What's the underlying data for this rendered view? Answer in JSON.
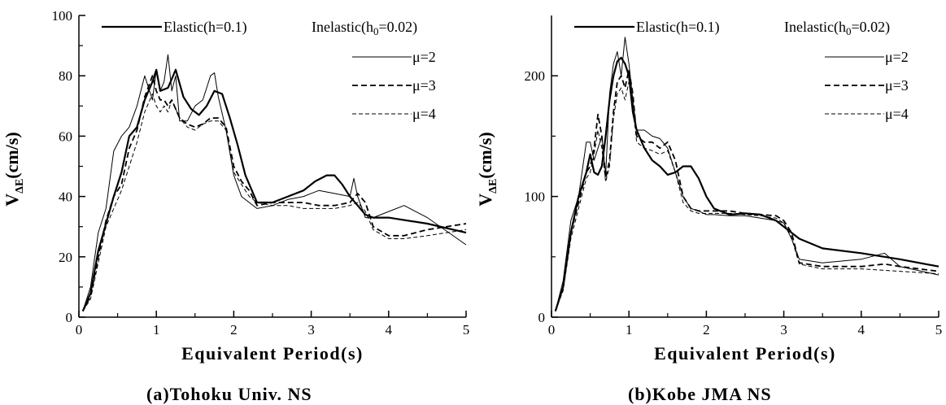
{
  "chart_data": [
    {
      "type": "line",
      "caption": "(a)Tohoku Univ. NS",
      "xlabel": "Equivalent Period(s)",
      "ylabel": {
        "main": "V",
        "sub": "ΔE",
        "rest": "(cm/s)"
      },
      "xlim": [
        0,
        5
      ],
      "ylim": [
        0,
        100
      ],
      "xticks": [
        "0",
        "1",
        "2",
        "3",
        "4",
        "5"
      ],
      "yticks": [
        "0",
        "20",
        "40",
        "60",
        "80",
        "100"
      ],
      "legend": {
        "elastic": "Elastic(h=0.1)",
        "inelastic": {
          "prefix": "Inelastic(h",
          "sub": "0",
          "suffix": "=0.02)"
        },
        "mu2": "μ=2",
        "mu3": "μ=3",
        "mu4": "μ=4"
      },
      "series": [
        {
          "name": "Elastic(h=0.1)",
          "style": "thick-solid",
          "x": [
            0.05,
            0.15,
            0.25,
            0.35,
            0.45,
            0.55,
            0.65,
            0.75,
            0.85,
            0.95,
            1.0,
            1.05,
            1.15,
            1.25,
            1.35,
            1.45,
            1.55,
            1.65,
            1.75,
            1.85,
            1.95,
            2.05,
            2.15,
            2.3,
            2.5,
            2.7,
            2.9,
            3.05,
            3.2,
            3.3,
            3.4,
            3.5,
            3.6,
            3.7,
            3.8,
            4.0,
            4.5,
            5.0
          ],
          "y": [
            2,
            8,
            22,
            31,
            40,
            48,
            60,
            63,
            72,
            78,
            82,
            75,
            76,
            82,
            73,
            69,
            67,
            70,
            75,
            74,
            66,
            57,
            47,
            38,
            38,
            40,
            42,
            45,
            47,
            47,
            44,
            40,
            37,
            34,
            33,
            33,
            31,
            28
          ]
        },
        {
          "name": "μ=2",
          "style": "thin-solid",
          "x": [
            0.05,
            0.15,
            0.25,
            0.35,
            0.45,
            0.55,
            0.65,
            0.75,
            0.85,
            0.95,
            1.0,
            1.05,
            1.1,
            1.15,
            1.2,
            1.25,
            1.3,
            1.4,
            1.5,
            1.6,
            1.7,
            1.75,
            1.8,
            1.9,
            2.0,
            2.1,
            2.2,
            2.3,
            2.5,
            2.7,
            2.9,
            3.1,
            3.3,
            3.5,
            3.55,
            3.6,
            3.7,
            3.8,
            4.0,
            4.2,
            4.5,
            5.0
          ],
          "y": [
            2,
            10,
            28,
            36,
            55,
            60,
            63,
            70,
            80,
            72,
            82,
            75,
            78,
            87,
            75,
            80,
            65,
            65,
            70,
            72,
            80,
            81,
            73,
            62,
            47,
            40,
            38,
            36,
            37,
            39,
            40,
            42,
            41,
            40,
            46,
            40,
            33,
            33,
            35,
            37,
            33,
            24
          ]
        },
        {
          "name": "μ=3",
          "style": "thick-dashed",
          "x": [
            0.05,
            0.15,
            0.25,
            0.35,
            0.45,
            0.55,
            0.65,
            0.75,
            0.85,
            0.95,
            1.0,
            1.05,
            1.1,
            1.15,
            1.2,
            1.3,
            1.4,
            1.5,
            1.6,
            1.7,
            1.8,
            1.9,
            2.0,
            2.1,
            2.2,
            2.3,
            2.5,
            2.7,
            2.9,
            3.1,
            3.3,
            3.5,
            3.6,
            3.7,
            3.8,
            4.0,
            4.2,
            4.5,
            5.0
          ],
          "y": [
            2,
            7,
            20,
            32,
            40,
            44,
            56,
            62,
            73,
            80,
            75,
            72,
            72,
            70,
            72,
            66,
            64,
            63,
            64,
            66,
            66,
            63,
            50,
            45,
            42,
            37,
            38,
            38,
            38,
            37,
            37,
            38,
            41,
            38,
            30,
            27,
            27,
            29,
            31
          ]
        },
        {
          "name": "μ=4",
          "style": "thin-dashed",
          "x": [
            0.05,
            0.15,
            0.25,
            0.35,
            0.45,
            0.55,
            0.65,
            0.75,
            0.85,
            0.95,
            1.0,
            1.05,
            1.1,
            1.15,
            1.2,
            1.3,
            1.4,
            1.5,
            1.6,
            1.7,
            1.8,
            1.9,
            2.0,
            2.1,
            2.2,
            2.3,
            2.5,
            2.7,
            2.9,
            3.1,
            3.3,
            3.5,
            3.6,
            3.7,
            3.8,
            4.0,
            4.2,
            4.5,
            5.0
          ],
          "y": [
            2,
            6,
            18,
            30,
            36,
            42,
            50,
            58,
            68,
            74,
            70,
            68,
            70,
            68,
            72,
            66,
            63,
            62,
            64,
            65,
            65,
            62,
            48,
            44,
            40,
            38,
            37,
            37,
            36,
            36,
            36,
            37,
            38,
            35,
            29,
            26,
            26,
            27,
            29
          ]
        }
      ]
    },
    {
      "type": "line",
      "caption": "(b)Kobe JMA NS",
      "xlabel": "Equivalent Period(s)",
      "ylabel": {
        "main": "V",
        "sub": "ΔE",
        "rest": "(cm/s)"
      },
      "xlim": [
        0,
        5
      ],
      "ylim": [
        0,
        250
      ],
      "yticks_values": [
        0,
        100,
        200
      ],
      "xticks": [
        "0",
        "1",
        "2",
        "3",
        "4",
        "5"
      ],
      "yticks": [
        "0",
        "100",
        "200"
      ],
      "legend": {
        "elastic": "Elastic(h=0.1)",
        "inelastic": {
          "prefix": "Inelastic(h",
          "sub": "0",
          "suffix": "=0.02)"
        },
        "mu2": "μ=2",
        "mu3": "μ=3",
        "mu4": "μ=4"
      },
      "series": [
        {
          "name": "Elastic(h=0.1)",
          "style": "thick-solid",
          "x": [
            0.05,
            0.15,
            0.25,
            0.35,
            0.45,
            0.5,
            0.55,
            0.6,
            0.65,
            0.7,
            0.75,
            0.8,
            0.85,
            0.9,
            0.95,
            1.0,
            1.05,
            1.1,
            1.2,
            1.3,
            1.4,
            1.5,
            1.6,
            1.7,
            1.8,
            1.9,
            2.0,
            2.1,
            2.3,
            2.5,
            2.7,
            2.9,
            3.0,
            3.2,
            3.5,
            4.0,
            4.5,
            5.0
          ],
          "y": [
            5,
            25,
            70,
            100,
            120,
            135,
            120,
            118,
            125,
            150,
            180,
            200,
            212,
            215,
            210,
            200,
            170,
            155,
            140,
            130,
            125,
            118,
            120,
            125,
            125,
            115,
            100,
            90,
            85,
            86,
            85,
            80,
            75,
            65,
            57,
            53,
            48,
            42
          ]
        },
        {
          "name": "μ=2",
          "style": "thin-solid",
          "x": [
            0.05,
            0.15,
            0.25,
            0.35,
            0.45,
            0.5,
            0.55,
            0.6,
            0.65,
            0.7,
            0.75,
            0.8,
            0.85,
            0.9,
            0.95,
            1.0,
            1.05,
            1.1,
            1.2,
            1.3,
            1.4,
            1.5,
            1.6,
            1.7,
            1.8,
            1.9,
            2.0,
            2.1,
            2.3,
            2.5,
            2.7,
            2.9,
            3.0,
            3.1,
            3.2,
            3.5,
            4.0,
            4.3,
            4.5,
            5.0
          ],
          "y": [
            5,
            30,
            80,
            100,
            145,
            145,
            130,
            140,
            150,
            118,
            185,
            210,
            220,
            200,
            232,
            210,
            180,
            155,
            155,
            150,
            148,
            140,
            120,
            100,
            90,
            88,
            85,
            85,
            84,
            84,
            82,
            80,
            78,
            65,
            48,
            45,
            48,
            53,
            42,
            35
          ]
        },
        {
          "name": "μ=3",
          "style": "thick-dashed",
          "x": [
            0.05,
            0.15,
            0.25,
            0.35,
            0.45,
            0.5,
            0.55,
            0.6,
            0.65,
            0.7,
            0.75,
            0.8,
            0.85,
            0.9,
            0.95,
            1.0,
            1.05,
            1.1,
            1.2,
            1.3,
            1.4,
            1.5,
            1.6,
            1.7,
            1.8,
            1.9,
            2.0,
            2.1,
            2.3,
            2.5,
            2.7,
            2.9,
            3.0,
            3.1,
            3.2,
            3.5,
            4.0,
            4.3,
            4.5,
            5.0
          ],
          "y": [
            5,
            25,
            70,
            95,
            120,
            125,
            140,
            168,
            150,
            115,
            130,
            170,
            195,
            200,
            190,
            205,
            185,
            150,
            145,
            145,
            140,
            145,
            130,
            100,
            90,
            88,
            88,
            88,
            88,
            86,
            85,
            84,
            80,
            70,
            45,
            42,
            42,
            44,
            42,
            38
          ]
        },
        {
          "name": "μ=4",
          "style": "thin-dashed",
          "x": [
            0.05,
            0.15,
            0.25,
            0.35,
            0.45,
            0.5,
            0.55,
            0.6,
            0.65,
            0.7,
            0.75,
            0.8,
            0.85,
            0.9,
            0.95,
            1.0,
            1.05,
            1.1,
            1.2,
            1.3,
            1.4,
            1.5,
            1.6,
            1.7,
            1.8,
            1.9,
            2.0,
            2.1,
            2.3,
            2.5,
            2.7,
            2.9,
            3.0,
            3.1,
            3.2,
            3.5,
            4.0,
            4.5,
            5.0
          ],
          "y": [
            5,
            22,
            65,
            90,
            115,
            120,
            135,
            155,
            140,
            112,
            125,
            165,
            185,
            190,
            180,
            195,
            175,
            145,
            140,
            138,
            135,
            138,
            120,
            95,
            88,
            86,
            86,
            86,
            86,
            85,
            84,
            82,
            78,
            66,
            44,
            40,
            40,
            38,
            36
          ]
        }
      ]
    }
  ]
}
